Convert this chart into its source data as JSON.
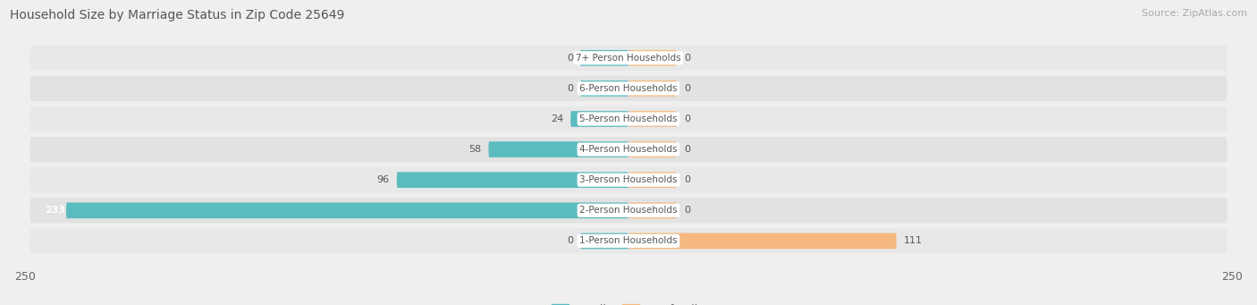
{
  "title": "Household Size by Marriage Status in Zip Code 25649",
  "source": "Source: ZipAtlas.com",
  "categories": [
    "7+ Person Households",
    "6-Person Households",
    "5-Person Households",
    "4-Person Households",
    "3-Person Households",
    "2-Person Households",
    "1-Person Households"
  ],
  "family_values": [
    0,
    0,
    24,
    58,
    96,
    233,
    0
  ],
  "nonfamily_values": [
    0,
    0,
    0,
    0,
    0,
    0,
    111
  ],
  "family_color": "#5bbcbf",
  "nonfamily_color": "#f5b97f",
  "xlim": 250,
  "row_colors": [
    "#e8e8e8",
    "#e2e2e2"
  ],
  "background_color": "#efefef",
  "title_fontsize": 10,
  "source_fontsize": 8,
  "bar_height": 0.52,
  "value_fontsize": 8,
  "category_fontsize": 7.5,
  "stub_size": 20
}
